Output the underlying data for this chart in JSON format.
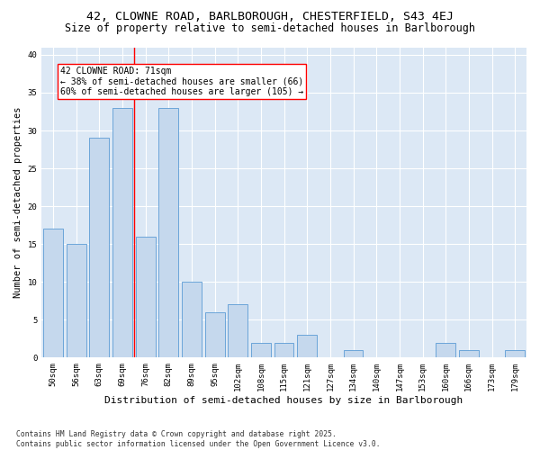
{
  "title1": "42, CLOWNE ROAD, BARLBOROUGH, CHESTERFIELD, S43 4EJ",
  "title2": "Size of property relative to semi-detached houses in Barlborough",
  "xlabel": "Distribution of semi-detached houses by size in Barlborough",
  "ylabel": "Number of semi-detached properties",
  "categories": [
    "50sqm",
    "56sqm",
    "63sqm",
    "69sqm",
    "76sqm",
    "82sqm",
    "89sqm",
    "95sqm",
    "102sqm",
    "108sqm",
    "115sqm",
    "121sqm",
    "127sqm",
    "134sqm",
    "140sqm",
    "147sqm",
    "153sqm",
    "160sqm",
    "166sqm",
    "173sqm",
    "179sqm"
  ],
  "values": [
    17,
    15,
    29,
    33,
    16,
    33,
    10,
    6,
    7,
    2,
    2,
    3,
    0,
    1,
    0,
    0,
    0,
    2,
    1,
    0,
    1
  ],
  "bar_color": "#c5d8ed",
  "bar_edge_color": "#5b9bd5",
  "red_line_x": 3.5,
  "annotation_title": "42 CLOWNE ROAD: 71sqm",
  "annotation_line2": "← 38% of semi-detached houses are smaller (66)",
  "annotation_line3": "60% of semi-detached houses are larger (105) →",
  "ylim": [
    0,
    41
  ],
  "yticks": [
    0,
    5,
    10,
    15,
    20,
    25,
    30,
    35,
    40
  ],
  "fig_background_color": "#ffffff",
  "plot_bg_color": "#dce8f5",
  "grid_color": "#ffffff",
  "footer_line1": "Contains HM Land Registry data © Crown copyright and database right 2025.",
  "footer_line2": "Contains public sector information licensed under the Open Government Licence v3.0.",
  "title1_fontsize": 9.5,
  "title2_fontsize": 8.5,
  "xlabel_fontsize": 8,
  "ylabel_fontsize": 7.5,
  "tick_fontsize": 6.5,
  "annotation_fontsize": 7,
  "footer_fontsize": 5.8
}
